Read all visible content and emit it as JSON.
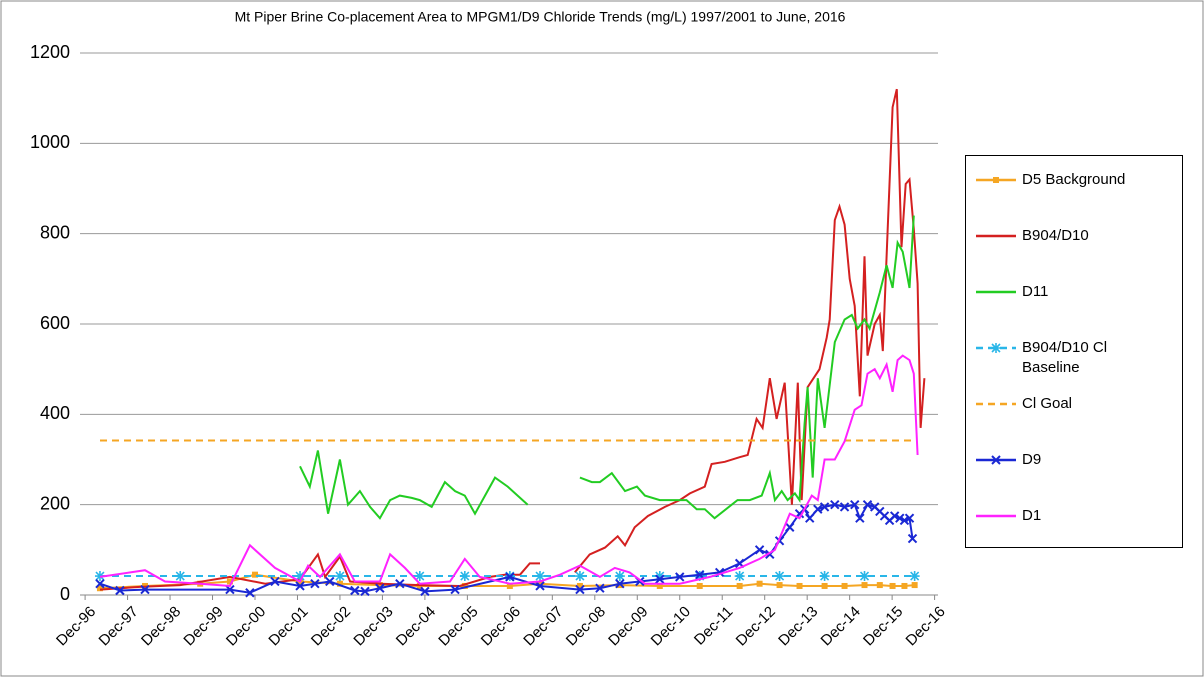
{
  "chart_data": {
    "type": "line",
    "title": "Mt Piper Brine Co-placement Area to MPGM1/D9  Chloride Trends (mg/L) 1997/2001 to June, 2016",
    "xlim": [
      1996.8,
      2017.0
    ],
    "xticks": [
      {
        "value": 1996.92,
        "label": "Dec-96"
      },
      {
        "value": 1997.92,
        "label": "Dec-97"
      },
      {
        "value": 1998.92,
        "label": "Dec-98"
      },
      {
        "value": 1999.92,
        "label": "Dec-99"
      },
      {
        "value": 2000.92,
        "label": "Dec-00"
      },
      {
        "value": 2001.92,
        "label": "Dec-01"
      },
      {
        "value": 2002.92,
        "label": "Dec-02"
      },
      {
        "value": 2003.92,
        "label": "Dec-03"
      },
      {
        "value": 2004.92,
        "label": "Dec-04"
      },
      {
        "value": 2005.92,
        "label": "Dec-05"
      },
      {
        "value": 2006.92,
        "label": "Dec-06"
      },
      {
        "value": 2007.92,
        "label": "Dec-07"
      },
      {
        "value": 2008.92,
        "label": "Dec-08"
      },
      {
        "value": 2009.92,
        "label": "Dec-09"
      },
      {
        "value": 2010.92,
        "label": "Dec-10"
      },
      {
        "value": 2011.92,
        "label": "Dec-11"
      },
      {
        "value": 2012.92,
        "label": "Dec-12"
      },
      {
        "value": 2013.92,
        "label": "Dec-13"
      },
      {
        "value": 2014.92,
        "label": "Dec-14"
      },
      {
        "value": 2015.92,
        "label": "Dec-15"
      },
      {
        "value": 2016.92,
        "label": "Dec-16"
      }
    ],
    "ylim": [
      0,
      1200
    ],
    "yticks": [
      0,
      200,
      400,
      600,
      800,
      1000,
      1200
    ],
    "grid": true,
    "legend": "right",
    "series": [
      {
        "name": "D5 Background",
        "color": "#f5a623",
        "marker": "square",
        "dash": false,
        "x": [
          1997.27,
          1998.33,
          1999.63,
          2000.33,
          2000.92,
          2001.98,
          2002.92,
          2003.86,
          2004.8,
          2005.86,
          2006.92,
          2007.63,
          2008.57,
          2009.51,
          2010.45,
          2011.39,
          2012.33,
          2012.8,
          2013.27,
          2013.74,
          2014.33,
          2014.8,
          2015.27,
          2015.63,
          2015.93,
          2016.21,
          2016.45
        ],
        "values": [
          15,
          20,
          25,
          30,
          45,
          30,
          25,
          22,
          20,
          20,
          20,
          25,
          20,
          22,
          20,
          20,
          20,
          25,
          22,
          20,
          20,
          20,
          22,
          22,
          20,
          20,
          22
        ]
      },
      {
        "name": "B904/D10",
        "color": "#d42020",
        "marker": "none",
        "dash": false,
        "x": [
          1997.27,
          1998.21,
          1999.16,
          2000.33,
          2001.16,
          2001.98,
          2002.4,
          2002.57,
          2002.92,
          2003.16,
          2003.86,
          2004.8,
          2005.74,
          2006.45,
          2006.8,
          2007.16,
          2007.39,
          2007.63,
          2008.0,
          2008.45,
          2008.8,
          2009.16,
          2009.46,
          2009.63,
          2009.86,
          2010.17,
          2010.57,
          2010.92,
          2011.16,
          2011.51,
          2011.67,
          2011.98,
          2012.33,
          2012.52,
          2012.73,
          2012.87,
          2013.04,
          2013.2,
          2013.39,
          2013.56,
          2013.7,
          2013.79,
          2013.93,
          2014.21,
          2014.38,
          2014.45,
          2014.57,
          2014.68,
          2014.8,
          2014.92,
          2015.04,
          2015.16,
          2015.27,
          2015.34,
          2015.51,
          2015.63,
          2015.7,
          2015.81,
          2015.93,
          2016.03,
          2016.14,
          2016.24,
          2016.33,
          2016.43,
          2016.52,
          2016.59,
          2016.68
        ],
        "values": [
          12,
          18,
          22,
          40,
          25,
          35,
          90,
          40,
          85,
          30,
          25,
          22,
          20,
          40,
          45,
          45,
          70,
          70,
          null,
          50,
          90,
          105,
          130,
          110,
          150,
          175,
          195,
          210,
          225,
          240,
          290,
          295,
          305,
          310,
          390,
          370,
          480,
          390,
          470,
          200,
          470,
          210,
          460,
          500,
          570,
          610,
          830,
          860,
          820,
          700,
          640,
          440,
          750,
          530,
          600,
          620,
          540,
          800,
          1080,
          1120,
          770,
          910,
          920,
          810,
          690,
          370,
          480
        ]
      },
      {
        "name": "D11",
        "color": "#22cc22",
        "marker": "none",
        "dash": false,
        "x": [
          2001.98,
          2002.21,
          2002.4,
          2002.64,
          2002.92,
          2003.11,
          2003.39,
          2003.63,
          2003.86,
          2004.1,
          2004.33,
          2004.61,
          2004.8,
          2005.08,
          2005.39,
          2005.63,
          2005.86,
          2006.1,
          2006.57,
          2006.87,
          2007.34,
          2008.0,
          2008.57,
          2008.85,
          2009.04,
          2009.32,
          2009.63,
          2009.91,
          2010.1,
          2010.45,
          2011.08,
          2011.32,
          2011.51,
          2011.74,
          2012.28,
          2012.57,
          2012.85,
          2013.04,
          2013.16,
          2013.32,
          2013.46,
          2013.63,
          2013.74,
          2013.86,
          2013.93,
          2014.05,
          2014.17,
          2014.33,
          2014.57,
          2014.8,
          2014.97,
          2015.11,
          2015.27,
          2015.39,
          2015.63,
          2015.79,
          2015.93,
          2016.05,
          2016.17,
          2016.33,
          2016.43
        ],
        "values": [
          285,
          240,
          320,
          180,
          300,
          200,
          230,
          195,
          170,
          210,
          220,
          215,
          210,
          195,
          250,
          230,
          220,
          180,
          260,
          240,
          200,
          null,
          260,
          250,
          250,
          270,
          230,
          240,
          220,
          210,
          210,
          190,
          190,
          170,
          210,
          210,
          220,
          270,
          210,
          230,
          210,
          225,
          210,
          380,
          460,
          260,
          480,
          370,
          560,
          610,
          620,
          590,
          610,
          590,
          670,
          730,
          680,
          780,
          760,
          680,
          840
        ]
      },
      {
        "name": "B904/D10 Cl Baseline",
        "color": "#29b6e8",
        "marker": "asterisk",
        "dash": true,
        "x": [
          1997.27,
          1999.16,
          2001.98,
          2002.92,
          2004.8,
          2005.86,
          2006.92,
          2007.63,
          2008.57,
          2009.51,
          2010.45,
          2011.39,
          2012.33,
          2013.27,
          2014.33,
          2015.27,
          2016.45
        ],
        "values": [
          42,
          42,
          42,
          42,
          42,
          42,
          42,
          42,
          42,
          42,
          42,
          42,
          42,
          42,
          42,
          42,
          42
        ]
      },
      {
        "name": "Cl Goal",
        "color": "#f5a623",
        "marker": "none",
        "dash": true,
        "x": [
          1997.27,
          2016.45
        ],
        "values": [
          342,
          342
        ]
      },
      {
        "name": "D9",
        "color": "#1a28d4",
        "marker": "cross",
        "dash": false,
        "x": [
          1997.27,
          1997.74,
          1998.33,
          2000.33,
          2000.8,
          2001.39,
          2001.98,
          2002.33,
          2002.68,
          2003.27,
          2003.51,
          2003.86,
          2004.33,
          2004.92,
          2005.63,
          2006.92,
          2007.63,
          2008.57,
          2009.04,
          2009.51,
          2009.98,
          2010.45,
          2010.92,
          2011.39,
          2011.86,
          2012.33,
          2012.8,
          2013.04,
          2013.27,
          2013.51,
          2013.74,
          2013.86,
          2013.98,
          2014.17,
          2014.33,
          2014.57,
          2014.8,
          2015.04,
          2015.16,
          2015.34,
          2015.51,
          2015.63,
          2015.74,
          2015.86,
          2015.98,
          2016.1,
          2016.21,
          2016.33,
          2016.4
        ],
        "values": [
          25,
          10,
          12,
          12,
          5,
          30,
          20,
          25,
          30,
          10,
          8,
          15,
          25,
          8,
          12,
          40,
          20,
          12,
          15,
          25,
          30,
          35,
          40,
          45,
          50,
          70,
          100,
          90,
          120,
          150,
          180,
          190,
          170,
          190,
          195,
          200,
          195,
          200,
          170,
          200,
          195,
          185,
          175,
          165,
          175,
          170,
          165,
          170,
          125
        ]
      },
      {
        "name": "D1",
        "color": "#ff22ff",
        "marker": "none",
        "dash": false,
        "x": [
          1997.27,
          1998.33,
          1998.8,
          1999.63,
          2000.33,
          2000.8,
          2001.39,
          2001.98,
          2002.17,
          2002.45,
          2002.92,
          2003.27,
          2003.86,
          2004.1,
          2004.45,
          2004.8,
          2005.51,
          2005.86,
          2006.21,
          2006.92,
          2007.63,
          2008.1,
          2008.57,
          2009.04,
          2009.39,
          2009.74,
          2010.1,
          2010.92,
          2011.63,
          2012.33,
          2012.8,
          2013.16,
          2013.51,
          2013.74,
          2014.03,
          2014.17,
          2014.33,
          2014.57,
          2014.8,
          2015.04,
          2015.2,
          2015.34,
          2015.51,
          2015.63,
          2015.79,
          2015.93,
          2016.05,
          2016.17,
          2016.33,
          2016.43,
          2016.52
        ],
        "values": [
          40,
          55,
          30,
          25,
          20,
          110,
          60,
          30,
          65,
          40,
          90,
          30,
          30,
          90,
          60,
          25,
          30,
          80,
          40,
          25,
          30,
          45,
          65,
          40,
          60,
          50,
          25,
          25,
          40,
          60,
          80,
          100,
          180,
          170,
          220,
          210,
          300,
          300,
          340,
          410,
          420,
          490,
          500,
          480,
          510,
          450,
          520,
          530,
          520,
          490,
          310
        ]
      }
    ]
  }
}
